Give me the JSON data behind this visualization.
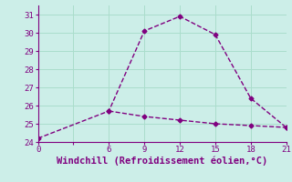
{
  "x_line1": [
    0,
    6,
    9,
    12,
    15,
    18,
    21
  ],
  "y_line1": [
    24.2,
    25.7,
    30.1,
    30.9,
    29.9,
    26.4,
    24.8
  ],
  "x_line2": [
    6,
    9,
    12,
    15,
    18,
    21
  ],
  "y_line2": [
    25.7,
    25.4,
    25.2,
    25.0,
    24.9,
    24.8
  ],
  "line_color": "#800080",
  "marker": "D",
  "markersize": 2.5,
  "linewidth": 1.0,
  "xlabel": "Windchill (Refroidissement éolien,°C)",
  "xlabel_fontsize": 7.5,
  "background_color": "#cceee8",
  "grid_color": "#aaddcc",
  "xlim": [
    0,
    21
  ],
  "ylim": [
    24,
    31.5
  ],
  "xticks": [
    0,
    3,
    6,
    9,
    12,
    15,
    18,
    21
  ],
  "xtick_labels": [
    "0",
    "",
    "6",
    "9",
    "12",
    "15",
    "18",
    "21"
  ],
  "yticks": [
    24,
    25,
    26,
    27,
    28,
    29,
    30,
    31
  ],
  "tick_fontsize": 6.5
}
